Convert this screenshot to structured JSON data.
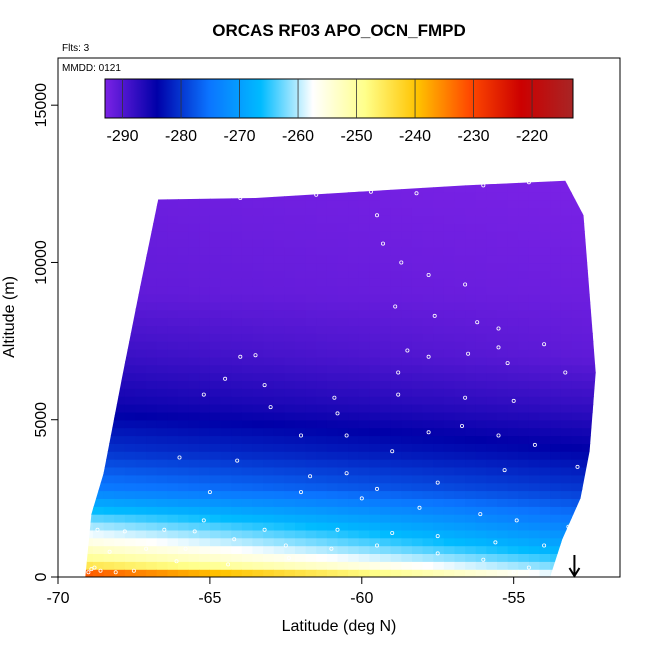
{
  "chart_data": {
    "type": "heatmap",
    "title": "ORCAS RF03 APO_OCN_FMPD",
    "flights_note": "Flts: 3",
    "date_note": "MMDD: 0121",
    "xlabel": "Latitude (deg N)",
    "ylabel": "Altitude (m)",
    "xlim": [
      -70,
      -51.5
    ],
    "ylim": [
      0,
      16500
    ],
    "x_ticks": [
      -70,
      -65,
      -60,
      -55
    ],
    "y_ticks": [
      0,
      5000,
      10000,
      15000
    ],
    "grid": false,
    "colorbar": {
      "placement": "top-inside",
      "range": [
        -293,
        -213
      ],
      "ticks": [
        -290,
        -280,
        -270,
        -260,
        -250,
        -240,
        -230,
        -220
      ],
      "colors": [
        "#7b22e6",
        "#0000a8",
        "#0b74ff",
        "#00bbff",
        "#ffffff",
        "#ffff8a",
        "#ffc300",
        "#ff4a00",
        "#cc0000",
        "#a82525"
      ]
    },
    "curtain": {
      "columns": [
        {
          "lat": -69.1,
          "alt_min": 0,
          "alt_max": 0
        },
        {
          "lat": -68.9,
          "alt_min": 0,
          "alt_max": 2000
        },
        {
          "lat": -68.5,
          "alt_min": 0,
          "alt_max": 3300
        },
        {
          "lat": -67.9,
          "alt_min": 0,
          "alt_max": 6300
        },
        {
          "lat": -67.3,
          "alt_min": 0,
          "alt_max": 9200
        },
        {
          "lat": -66.7,
          "alt_min": 0,
          "alt_max": 12000
        },
        {
          "lat": -63.5,
          "alt_min": 0,
          "alt_max": 12050
        },
        {
          "lat": -60.1,
          "alt_min": 0,
          "alt_max": 12250
        },
        {
          "lat": -56.6,
          "alt_min": 0,
          "alt_max": 12450
        },
        {
          "lat": -53.3,
          "alt_min": 0,
          "alt_max": 12600
        },
        {
          "lat": -52.7,
          "alt_min": 0,
          "alt_max": 11500
        },
        {
          "lat": -52.5,
          "alt_min": 0,
          "alt_max": 9000
        },
        {
          "lat": -52.3,
          "alt_min": 0,
          "alt_max": 6500
        },
        {
          "lat": -52.5,
          "alt_min": 0,
          "alt_max": 4000
        },
        {
          "lat": -52.8,
          "alt_min": 0,
          "alt_max": 2500
        },
        {
          "lat": -53.4,
          "alt_min": 0,
          "alt_max": 1200
        },
        {
          "lat": -53.8,
          "alt_min": 0,
          "alt_max": 0
        }
      ],
      "value_profile": [
        {
          "alt": 0,
          "value_south": -218,
          "value_north": -260
        },
        {
          "alt": 200,
          "value_south": -240,
          "value_north": -262
        },
        {
          "alt": 500,
          "value_south": -248,
          "value_north": -265
        },
        {
          "alt": 1000,
          "value_south": -254,
          "value_north": -270
        },
        {
          "alt": 1800,
          "value_south": -262,
          "value_north": -275
        },
        {
          "alt": 2800,
          "value_south": -274,
          "value_north": -280
        },
        {
          "alt": 4000,
          "value_south": -280,
          "value_north": -284
        },
        {
          "alt": 5500,
          "value_south": -285,
          "value_north": -288
        },
        {
          "alt": 7000,
          "value_south": -288,
          "value_north": -291
        },
        {
          "alt": 9000,
          "value_south": -291,
          "value_north": -292
        },
        {
          "alt": 12700,
          "value_south": -292,
          "value_north": -293
        }
      ]
    },
    "flight_track": [
      [
        -66.8,
        12000
      ],
      [
        -64.0,
        12050
      ],
      [
        -61.5,
        12150
      ],
      [
        -59.7,
        12250
      ],
      [
        -58.2,
        12200
      ],
      [
        -56.0,
        12450
      ],
      [
        -54.5,
        12550
      ],
      [
        -53.0,
        12650
      ],
      [
        -59.5,
        11500
      ],
      [
        -59.3,
        10600
      ],
      [
        -58.7,
        10000
      ],
      [
        -57.8,
        9600
      ],
      [
        -56.6,
        9300
      ],
      [
        -58.9,
        8600
      ],
      [
        -57.6,
        8300
      ],
      [
        -56.2,
        8100
      ],
      [
        -55.5,
        7900
      ],
      [
        -58.5,
        7200
      ],
      [
        -57.8,
        7000
      ],
      [
        -56.5,
        7100
      ],
      [
        -55.5,
        7300
      ],
      [
        -54.0,
        7400
      ],
      [
        -58.8,
        6500
      ],
      [
        -55.2,
        6800
      ],
      [
        -53.3,
        6500
      ],
      [
        -64.0,
        7000
      ],
      [
        -63.5,
        7050
      ],
      [
        -64.5,
        6300
      ],
      [
        -63.2,
        6100
      ],
      [
        -65.2,
        5800
      ],
      [
        -63.0,
        5400
      ],
      [
        -60.9,
        5700
      ],
      [
        -60.8,
        5200
      ],
      [
        -58.8,
        5800
      ],
      [
        -56.6,
        5700
      ],
      [
        -55.0,
        5600
      ],
      [
        -62.0,
        4500
      ],
      [
        -60.5,
        4500
      ],
      [
        -59.0,
        4000
      ],
      [
        -57.8,
        4600
      ],
      [
        -56.7,
        4800
      ],
      [
        -55.5,
        4500
      ],
      [
        -54.3,
        4200
      ],
      [
        -66.0,
        3800
      ],
      [
        -64.1,
        3700
      ],
      [
        -61.7,
        3200
      ],
      [
        -60.5,
        3300
      ],
      [
        -59.5,
        2800
      ],
      [
        -57.5,
        3000
      ],
      [
        -55.3,
        3400
      ],
      [
        -52.9,
        3500
      ],
      [
        -65.0,
        2700
      ],
      [
        -62.0,
        2700
      ],
      [
        -60.0,
        2500
      ],
      [
        -58.1,
        2200
      ],
      [
        -56.1,
        2000
      ],
      [
        -54.9,
        1800
      ],
      [
        -53.2,
        1600
      ],
      [
        -52.6,
        2500
      ],
      [
        -65.2,
        1800
      ],
      [
        -63.2,
        1500
      ],
      [
        -60.8,
        1500
      ],
      [
        -59.0,
        1400
      ],
      [
        -57.5,
        1300
      ],
      [
        -55.6,
        1100
      ],
      [
        -54.0,
        1000
      ],
      [
        -68.7,
        1500
      ],
      [
        -67.8,
        1450
      ],
      [
        -66.5,
        1500
      ],
      [
        -65.5,
        1450
      ],
      [
        -64.2,
        1200
      ],
      [
        -62.5,
        1000
      ],
      [
        -61.0,
        900
      ],
      [
        -59.5,
        1000
      ],
      [
        -57.5,
        750
      ],
      [
        -56.0,
        550
      ],
      [
        -54.5,
        300
      ],
      [
        -68.3,
        800
      ],
      [
        -67.1,
        900
      ],
      [
        -65.8,
        900
      ],
      [
        -68.8,
        300
      ],
      [
        -68.1,
        150
      ],
      [
        -67.5,
        200
      ],
      [
        -66.1,
        500
      ],
      [
        -64.4,
        400
      ],
      [
        -62.4,
        600
      ],
      [
        -55.0,
        150
      ],
      [
        -69.0,
        150
      ],
      [
        -68.9,
        250
      ],
      [
        -68.6,
        200
      ]
    ],
    "annotations": [
      {
        "type": "arrow-down",
        "lat": -53.0,
        "alt_top": 700,
        "alt_bottom": 0
      }
    ]
  }
}
